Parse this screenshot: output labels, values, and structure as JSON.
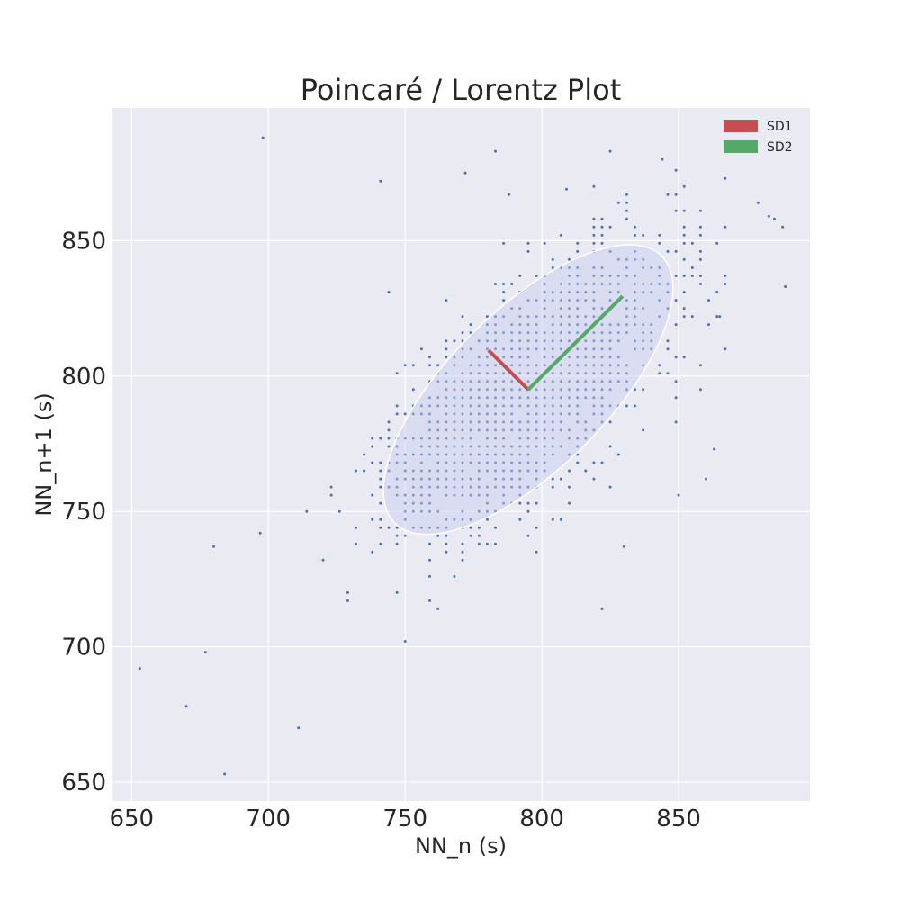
{
  "chart_data": {
    "type": "scatter",
    "title": "Poincaré / Lorentz Plot",
    "xlabel": "NN_n (s)",
    "ylabel": "NN_n+1 (s)",
    "xlim": [
      643,
      898
    ],
    "ylim": [
      643,
      899
    ],
    "xticks": [
      650,
      700,
      750,
      800,
      850
    ],
    "yticks": [
      650,
      700,
      750,
      800,
      850
    ],
    "grid": true,
    "legend_position": "top-right",
    "colors": {
      "background": "#eaeaf2",
      "grid": "#ffffff",
      "points": "#4c72b0",
      "sd1": "#c44e52",
      "sd2": "#55a868",
      "ellipse_fill": "#c8cdf0",
      "ellipse_edge": "#ffffff"
    },
    "legend": [
      {
        "label": "SD1",
        "color": "#c44e52"
      },
      {
        "label": "SD2",
        "color": "#55a868"
      }
    ],
    "center": [
      795,
      795
    ],
    "sd1_segment": {
      "from": [
        795,
        795
      ],
      "to": [
        780.5,
        809.5
      ]
    },
    "sd2_segment": {
      "from": [
        795,
        795
      ],
      "to": [
        829.5,
        829.5
      ]
    },
    "ellipse": {
      "center": [
        795,
        795
      ],
      "angle_deg": 45,
      "width": 138,
      "height": 58
    },
    "scatter_model": {
      "n": 1800,
      "mean": [
        795,
        795
      ],
      "sd1": 14.5,
      "sd2": 34.5,
      "quantize": 3,
      "seed": 7
    },
    "outliers": [
      [
        698,
        888
      ],
      [
        741,
        872
      ],
      [
        783,
        883
      ],
      [
        825,
        883
      ],
      [
        772,
        875
      ],
      [
        844,
        880
      ],
      [
        653,
        692
      ],
      [
        670,
        678
      ],
      [
        684,
        653
      ],
      [
        680,
        737
      ],
      [
        889,
        833
      ],
      [
        883,
        859
      ],
      [
        744,
        831
      ],
      [
        830,
        737
      ],
      [
        822,
        714
      ],
      [
        860,
        762
      ],
      [
        863,
        773
      ],
      [
        850,
        756
      ],
      [
        711,
        670
      ],
      [
        697,
        742
      ],
      [
        788,
        867
      ],
      [
        809,
        869
      ],
      [
        677,
        698
      ],
      [
        865,
        822
      ]
    ]
  }
}
